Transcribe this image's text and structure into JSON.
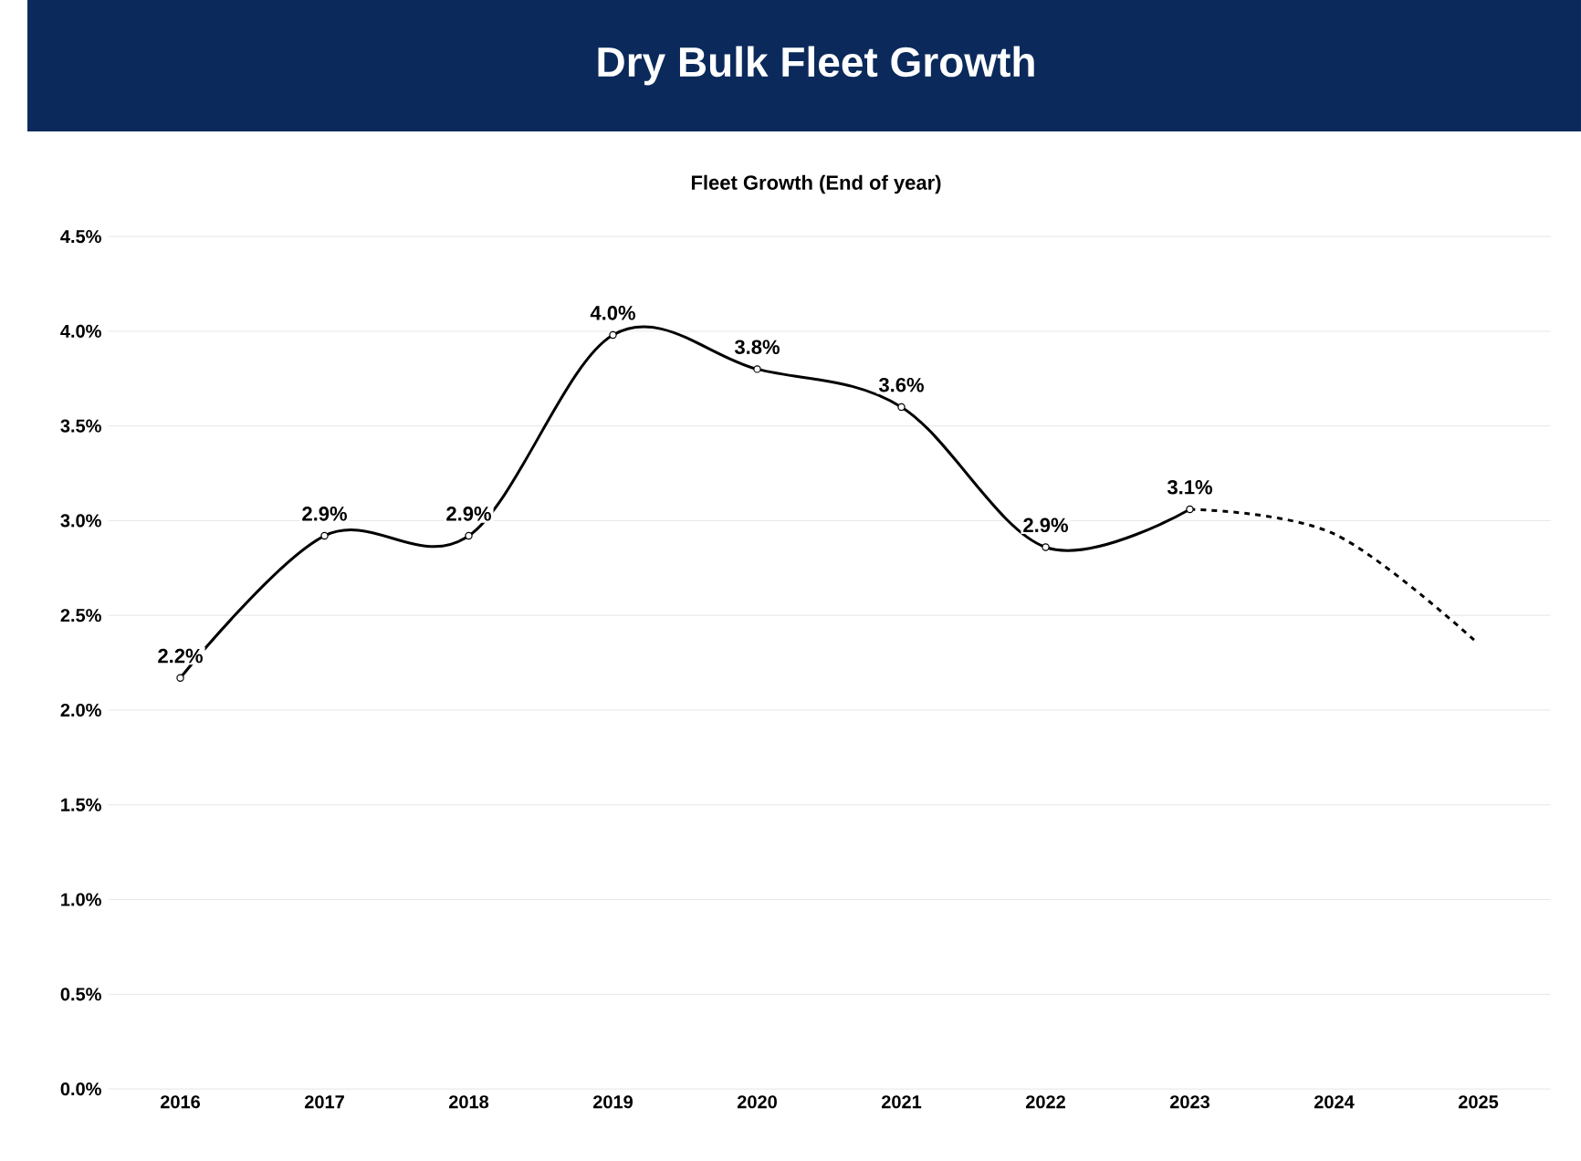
{
  "chart_data": {
    "type": "line",
    "title": "Dry Bulk Fleet Growth",
    "subtitle": "Fleet Growth (End of year)",
    "categories": [
      "2016",
      "2017",
      "2018",
      "2019",
      "2020",
      "2021",
      "2022",
      "2023",
      "2024",
      "2025"
    ],
    "series": [
      {
        "color": "#000000",
        "line_style": "solid",
        "marker": "circle",
        "values": [
          2.17,
          2.92,
          2.92,
          3.98,
          3.8,
          3.6,
          2.86,
          3.06,
          null,
          null
        ],
        "value_labels": [
          "2.2%",
          "2.9%",
          "2.9%",
          "4.0%",
          "3.8%",
          "3.6%",
          "2.9%",
          "3.1%",
          null,
          null
        ]
      },
      {
        "color": "#000000",
        "line_style": "dashed",
        "marker": "none",
        "values": [
          null,
          null,
          null,
          null,
          null,
          null,
          null,
          3.06,
          2.93,
          2.35
        ]
      }
    ],
    "ylim": [
      0,
      4.5
    ],
    "yticks": [
      {
        "value": 0,
        "label": "0.0%"
      },
      {
        "value": 0.5,
        "label": "0.5%"
      },
      {
        "value": 1,
        "label": "1.0%"
      },
      {
        "value": 1.5,
        "label": "1.5%"
      },
      {
        "value": 2,
        "label": "2.0%"
      },
      {
        "value": 2.5,
        "label": "2.5%"
      },
      {
        "value": 3,
        "label": "3.0%"
      },
      {
        "value": 3.5,
        "label": "3.5%"
      },
      {
        "value": 4,
        "label": "4.0%"
      },
      {
        "value": 4.5,
        "label": "4.5%"
      }
    ],
    "grid": "y"
  }
}
